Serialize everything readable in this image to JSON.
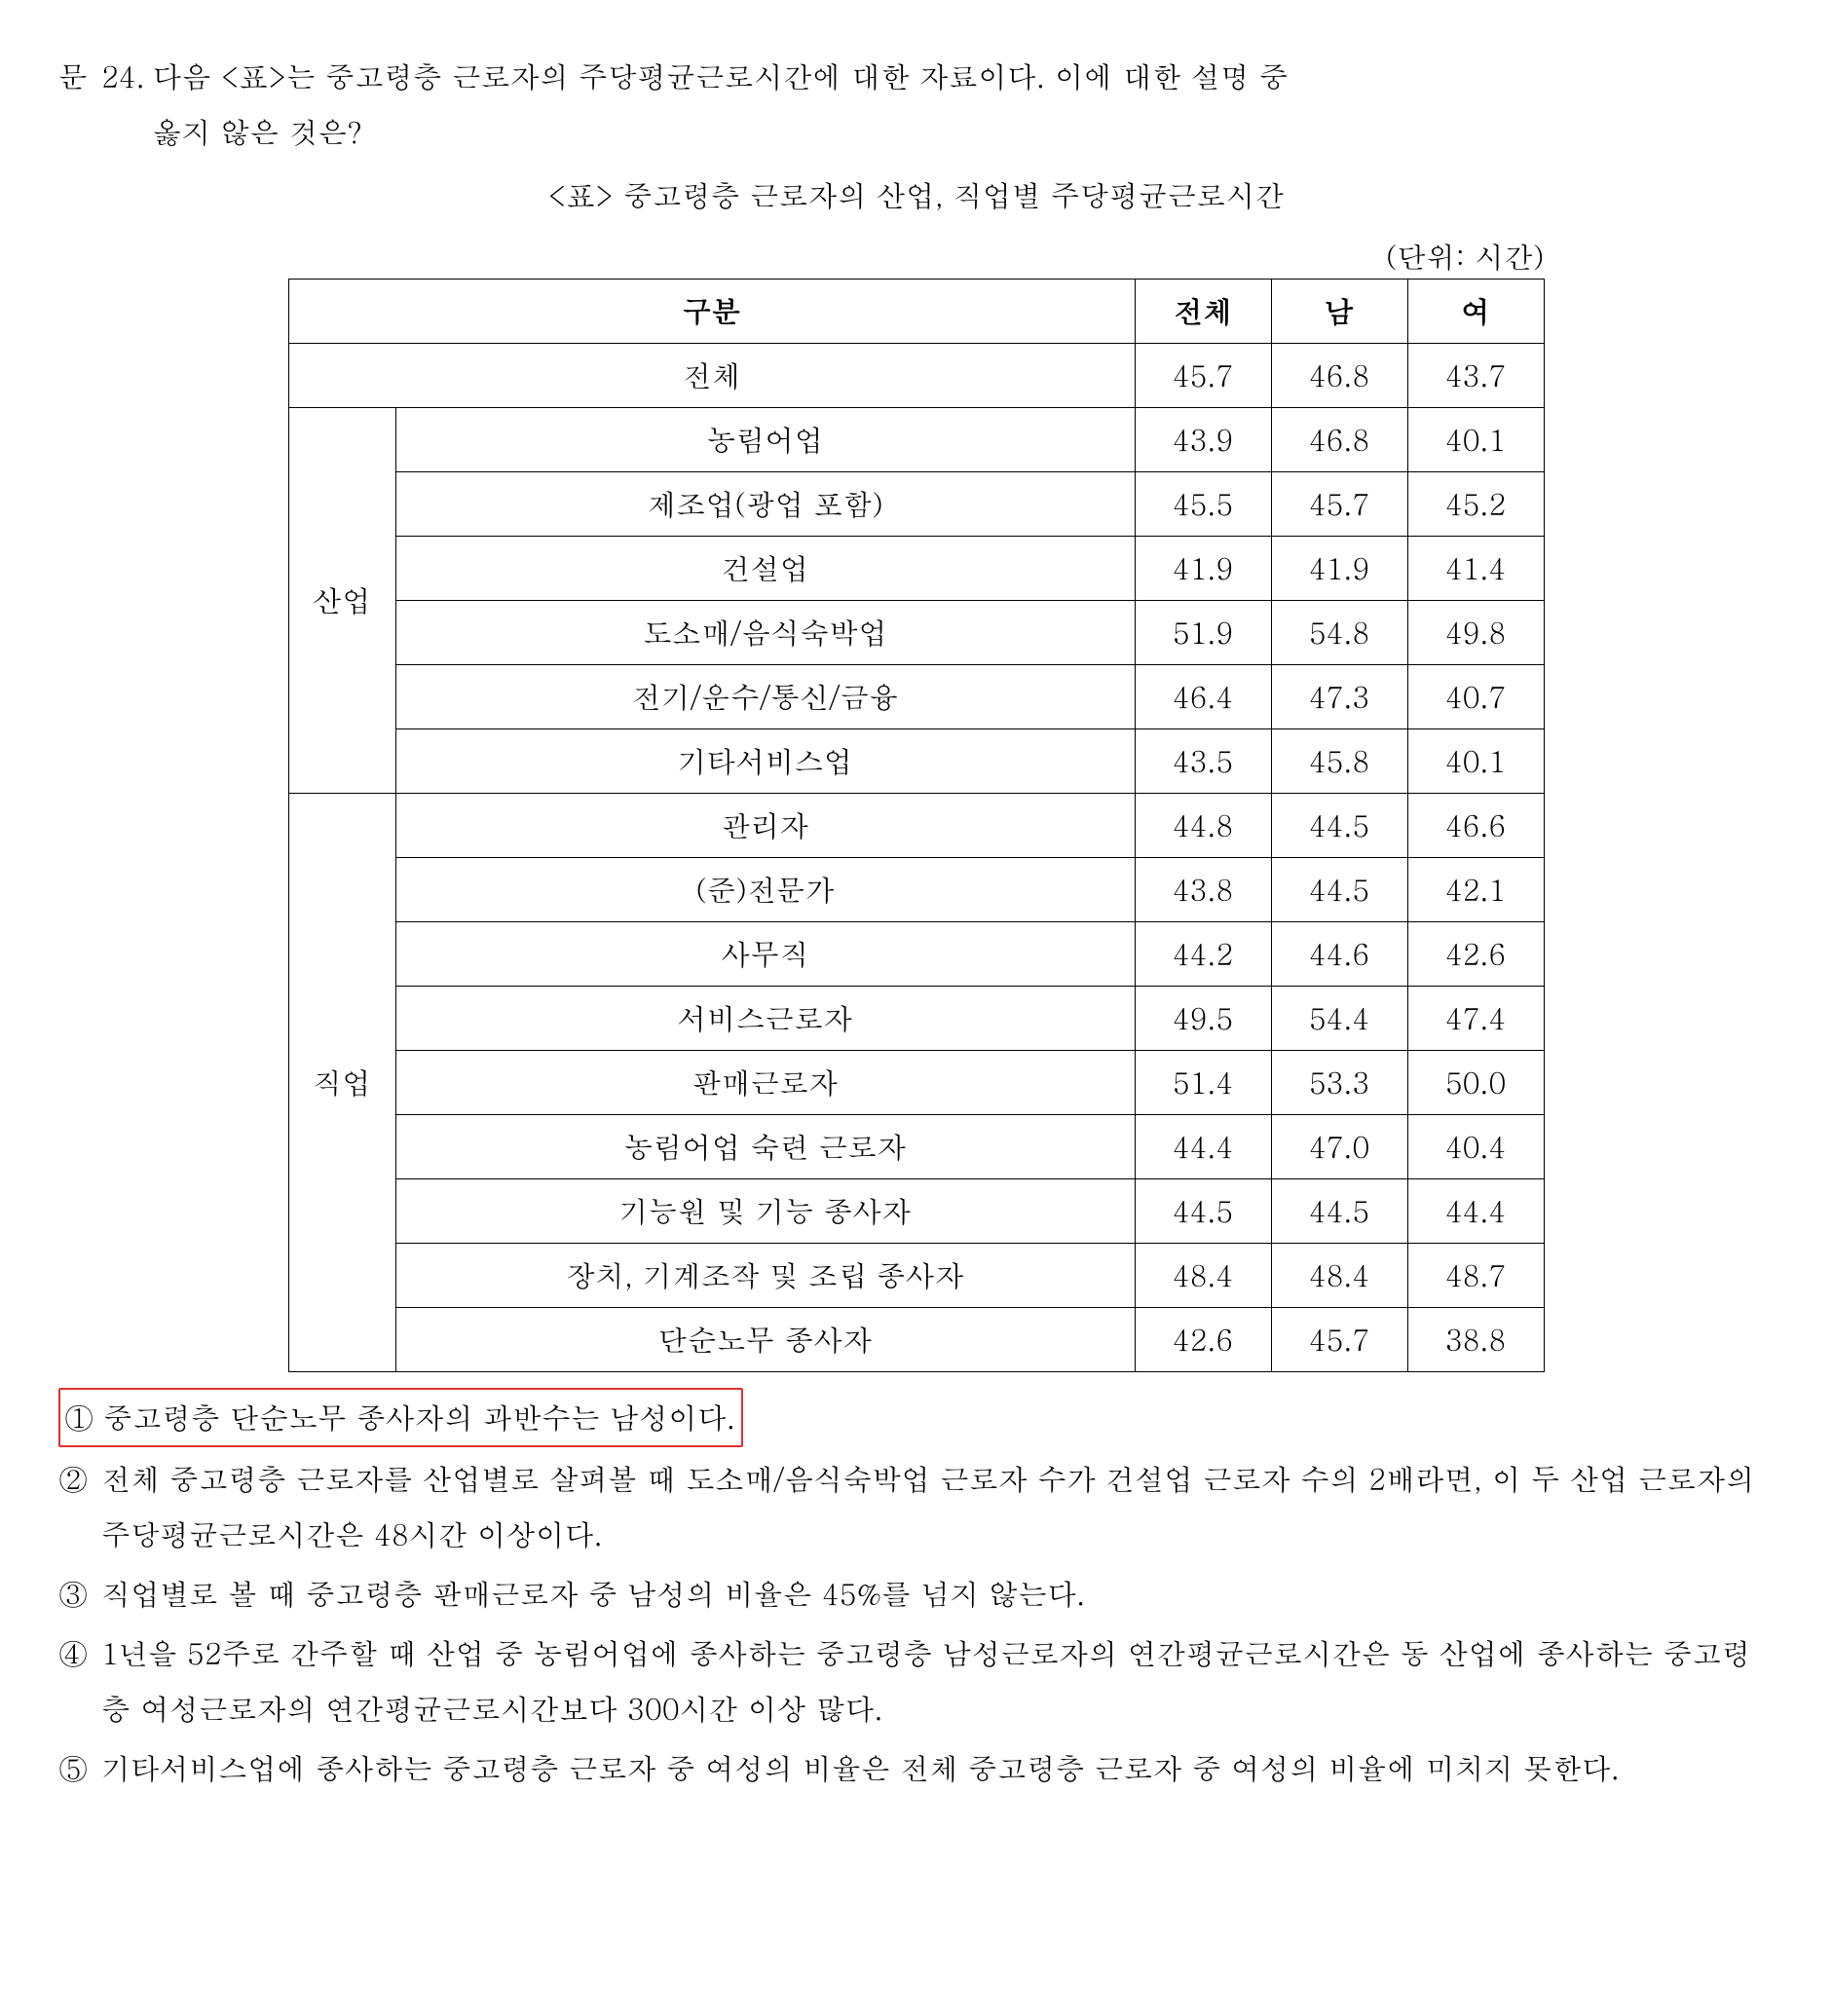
{
  "question": {
    "label": "문",
    "number": "24.",
    "text_line1": "다음 <표>는 중고령층 근로자의 주당평균근로시간에 대한 자료이다. 이에 대한 설명 중",
    "text_line2": "옳지 않은 것은?"
  },
  "table": {
    "caption": "<표> 중고령층 근로자의 산업, 직업별 주당평균근로시간",
    "unit": "(단위: 시간)",
    "header": {
      "category": "구분",
      "total": "전체",
      "male": "남",
      "female": "여"
    },
    "total_row": {
      "label": "전체",
      "total": "45.7",
      "male": "46.8",
      "female": "43.7"
    },
    "groups": [
      {
        "name": "산업",
        "rows": [
          {
            "label": "농림어업",
            "total": "43.9",
            "male": "46.8",
            "female": "40.1"
          },
          {
            "label": "제조업(광업 포함)",
            "total": "45.5",
            "male": "45.7",
            "female": "45.2"
          },
          {
            "label": "건설업",
            "total": "41.9",
            "male": "41.9",
            "female": "41.4"
          },
          {
            "label": "도소매/음식숙박업",
            "total": "51.9",
            "male": "54.8",
            "female": "49.8"
          },
          {
            "label": "전기/운수/통신/금융",
            "total": "46.4",
            "male": "47.3",
            "female": "40.7"
          },
          {
            "label": "기타서비스업",
            "total": "43.5",
            "male": "45.8",
            "female": "40.1"
          }
        ]
      },
      {
        "name": "직업",
        "rows": [
          {
            "label": "관리자",
            "total": "44.8",
            "male": "44.5",
            "female": "46.6"
          },
          {
            "label": "(준)전문가",
            "total": "43.8",
            "male": "44.5",
            "female": "42.1"
          },
          {
            "label": "사무직",
            "total": "44.2",
            "male": "44.6",
            "female": "42.6"
          },
          {
            "label": "서비스근로자",
            "total": "49.5",
            "male": "54.4",
            "female": "47.4"
          },
          {
            "label": "판매근로자",
            "total": "51.4",
            "male": "53.3",
            "female": "50.0"
          },
          {
            "label": "농림어업 숙련 근로자",
            "total": "44.4",
            "male": "47.0",
            "female": "40.4"
          },
          {
            "label": "기능원 및 기능 종사자",
            "total": "44.5",
            "male": "44.5",
            "female": "44.4"
          },
          {
            "label": "장치, 기계조작 및 조립 종사자",
            "total": "48.4",
            "male": "48.4",
            "female": "48.7"
          },
          {
            "label": "단순노무 종사자",
            "total": "42.6",
            "male": "45.7",
            "female": "38.8"
          }
        ]
      }
    ]
  },
  "choices": {
    "c1": {
      "num": "①",
      "text": "중고령층 단순노무 종사자의 과반수는 남성이다.",
      "boxed": true
    },
    "c2": {
      "num": "②",
      "text": "전체 중고령층 근로자를 산업별로 살펴볼 때 도소매/음식숙박업 근로자 수가 건설업 근로자 수의 2배라면, 이 두 산업 근로자의 주당평균근로시간은 48시간 이상이다."
    },
    "c3": {
      "num": "③",
      "text": "직업별로 볼 때 중고령층 판매근로자 중 남성의 비율은 45%를 넘지 않는다."
    },
    "c4": {
      "num": "④",
      "text": "1년을 52주로 간주할 때 산업 중 농림어업에 종사하는 중고령층  남성근로자의 연간평균근로시간은 동 산업에 종사하는 중고령층 여성근로자의 연간평균근로시간보다 300시간 이상 많다."
    },
    "c5": {
      "num": "⑤",
      "text": "기타서비스업에 종사하는 중고령층 근로자 중 여성의 비율은 전체 중고령층 근로자 중 여성의 비율에 미치지 못한다."
    }
  }
}
